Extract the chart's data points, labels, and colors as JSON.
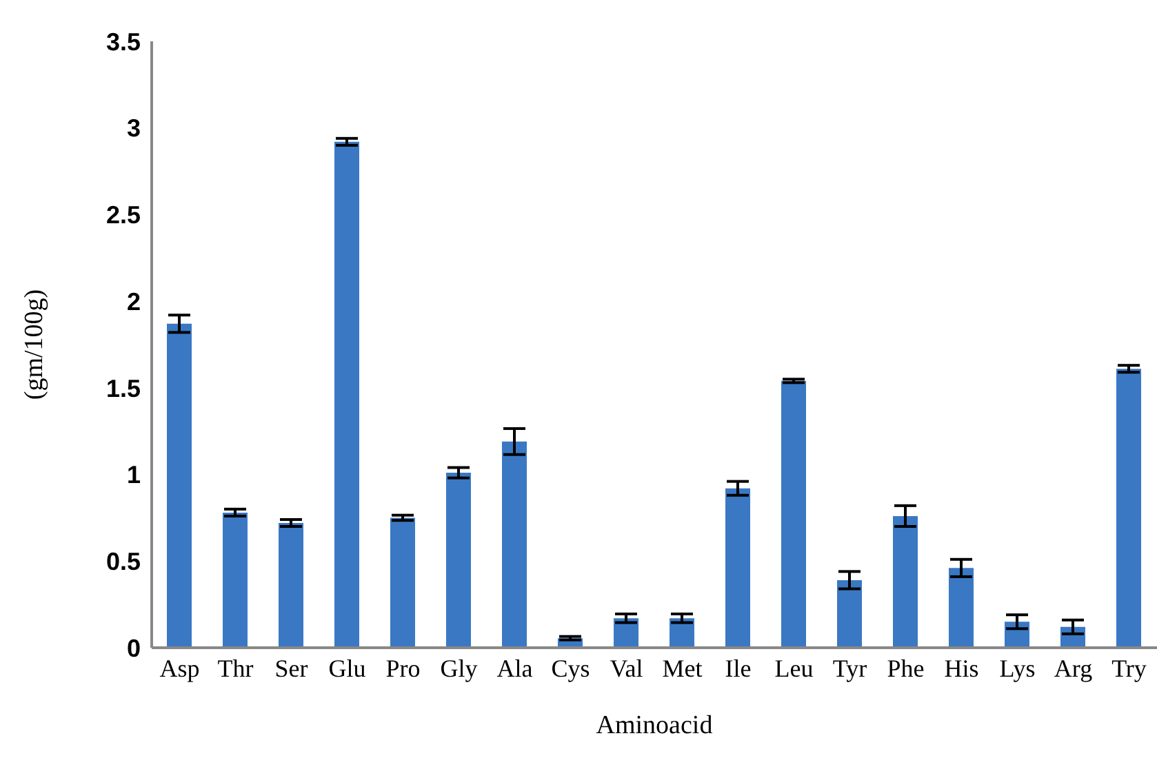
{
  "chart_data": {
    "type": "bar",
    "xlabel": "Aminoacid",
    "ylabel": "(gm/100g)",
    "categories": [
      "Asp",
      "Thr",
      "Ser",
      "Glu",
      "Pro",
      "Gly",
      "Ala",
      "Cys",
      "Val",
      "Met",
      "Ile",
      "Leu",
      "Tyr",
      "Phe",
      "His",
      "Lys",
      "Arg",
      "Try"
    ],
    "values": [
      1.87,
      0.78,
      0.72,
      2.92,
      0.75,
      1.01,
      1.19,
      0.055,
      0.17,
      0.17,
      0.92,
      1.54,
      0.39,
      0.76,
      0.46,
      0.15,
      0.12,
      1.61
    ],
    "errors": [
      0.05,
      0.02,
      0.02,
      0.02,
      0.015,
      0.03,
      0.075,
      0.01,
      0.025,
      0.025,
      0.04,
      0.01,
      0.05,
      0.06,
      0.05,
      0.04,
      0.04,
      0.02
    ],
    "color": "#3a78c4",
    "ylim": [
      0,
      3.5
    ],
    "yticks": [
      0,
      0.5,
      1,
      1.5,
      2,
      2.5,
      3,
      3.5
    ],
    "grid": false
  }
}
